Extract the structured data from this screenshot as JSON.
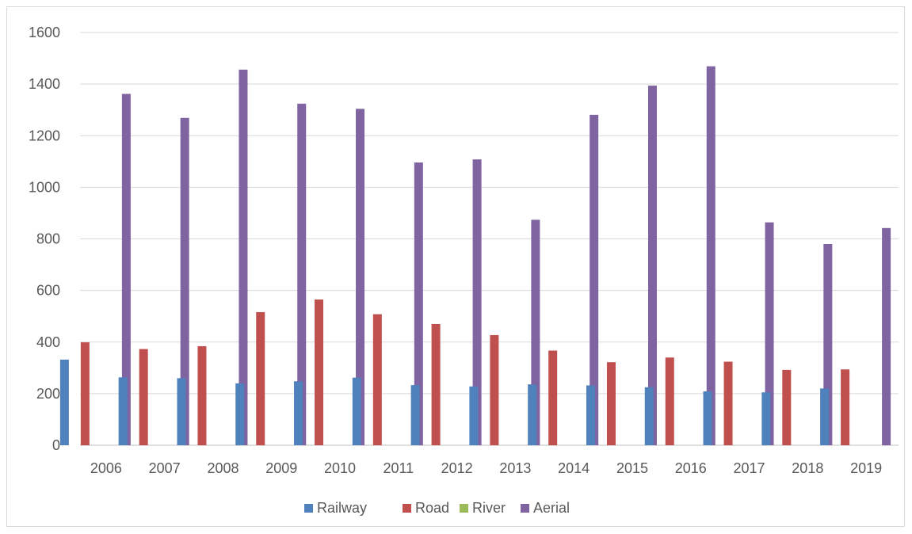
{
  "chart_data": {
    "type": "bar",
    "title": "",
    "xlabel": "",
    "ylabel": "",
    "categories": [
      "2006",
      "2007",
      "2008",
      "2009",
      "2010",
      "2011",
      "2012",
      "2013",
      "2014",
      "2015",
      "2016",
      "2017",
      "2018",
      "2019"
    ],
    "ylim": [
      0,
      1600
    ],
    "yticks": [
      0,
      200,
      400,
      600,
      800,
      1000,
      1200,
      1400,
      1600
    ],
    "ytick_labels": [
      "0",
      "200",
      "400",
      "600",
      "800",
      "1000",
      "1200",
      "1400",
      "1600"
    ],
    "grid": true,
    "legend_position": "bottom",
    "series": [
      {
        "name": "Railway",
        "color": "#4f81bd",
        "values": [
          332,
          263,
          260,
          240,
          248,
          262,
          233,
          228,
          236,
          232,
          225,
          209,
          205,
          220
        ]
      },
      {
        "name": "Road",
        "color": "#c0504d",
        "values": [
          399,
          373,
          384,
          516,
          565,
          508,
          470,
          427,
          367,
          322,
          340,
          324,
          292,
          294
        ]
      },
      {
        "name": "River",
        "color": "#9bbb59",
        "values": [
          0,
          0,
          0,
          0,
          0,
          0,
          0,
          0,
          0,
          0,
          0,
          0,
          0,
          0
        ]
      },
      {
        "name": "Aerial",
        "color": "#8064a2",
        "values": [
          1362,
          1269,
          1456,
          1324,
          1304,
          1096,
          1108,
          874,
          1281,
          1394,
          1469,
          864,
          780,
          842
        ]
      }
    ]
  }
}
